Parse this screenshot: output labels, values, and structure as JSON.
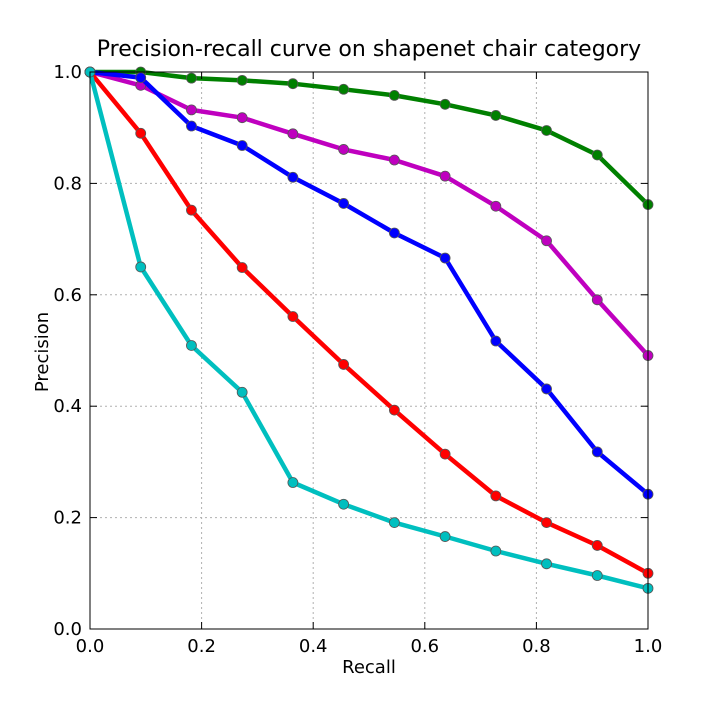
{
  "chart_data": {
    "type": "line",
    "title": "Precision-recall curve on shapenet chair category",
    "xlabel": "Recall",
    "ylabel": "Precision",
    "xlim": [
      0.0,
      1.0
    ],
    "ylim": [
      0.0,
      1.0
    ],
    "xticks": [
      "0.0",
      "0.2",
      "0.4",
      "0.6",
      "0.8",
      "1.0"
    ],
    "yticks": [
      "0.0",
      "0.2",
      "0.4",
      "0.6",
      "0.8",
      "1.0"
    ],
    "grid": true,
    "x": [
      0.0,
      0.0909,
      0.1818,
      0.2727,
      0.3636,
      0.4545,
      0.5455,
      0.6364,
      0.7273,
      0.8182,
      0.9091,
      1.0
    ],
    "series": [
      {
        "color": "#008000",
        "values": [
          1.0,
          1.0,
          0.989,
          0.985,
          0.979,
          0.969,
          0.958,
          0.942,
          0.922,
          0.895,
          0.851,
          0.762
        ]
      },
      {
        "color": "#bf00bf",
        "values": [
          1.0,
          0.976,
          0.932,
          0.918,
          0.889,
          0.861,
          0.842,
          0.813,
          0.759,
          0.697,
          0.591,
          0.491
        ]
      },
      {
        "color": "#0000ff",
        "values": [
          1.0,
          0.99,
          0.903,
          0.868,
          0.811,
          0.764,
          0.711,
          0.666,
          0.517,
          0.431,
          0.318,
          0.242
        ]
      },
      {
        "color": "#ff0000",
        "values": [
          1.0,
          0.89,
          0.752,
          0.649,
          0.561,
          0.475,
          0.393,
          0.314,
          0.239,
          0.191,
          0.15,
          0.1
        ]
      },
      {
        "color": "#00bfbf",
        "values": [
          1.0,
          0.65,
          0.509,
          0.425,
          0.263,
          0.224,
          0.191,
          0.166,
          0.14,
          0.117,
          0.096,
          0.073
        ]
      }
    ]
  }
}
